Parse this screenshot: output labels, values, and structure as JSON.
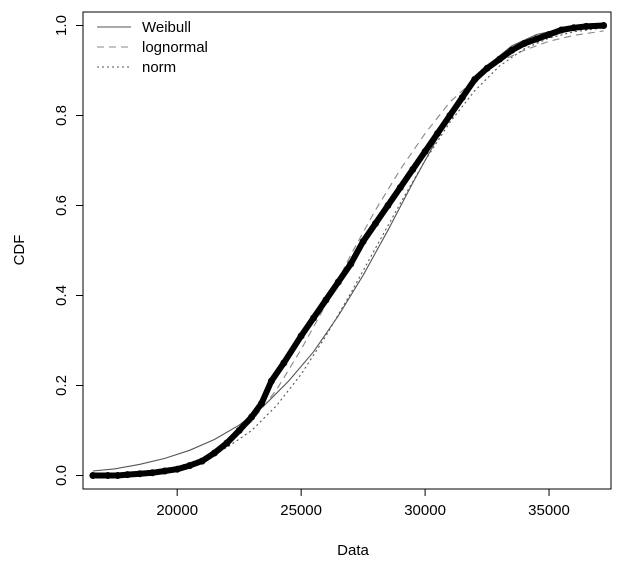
{
  "chart_data": {
    "type": "line",
    "title": "",
    "xlabel": "Data",
    "ylabel": "CDF",
    "xlim": [
      16200,
      37500
    ],
    "ylim": [
      -0.03,
      1.03
    ],
    "grid": false,
    "legend_position": "top-left",
    "x_ticks": [
      20000,
      25000,
      30000,
      35000
    ],
    "x_tick_labels": [
      "20000",
      "25000",
      "30000",
      "35000"
    ],
    "y_ticks": [
      0.0,
      0.2,
      0.4,
      0.6,
      0.8,
      1.0
    ],
    "y_tick_labels": [
      "0.0",
      "0.2",
      "0.4",
      "0.6",
      "0.8",
      "1.0"
    ],
    "empirical": {
      "points": [
        [
          16600,
          0.0
        ],
        [
          17200,
          0.0
        ],
        [
          17600,
          0.0
        ],
        [
          18000,
          0.002
        ],
        [
          18500,
          0.004
        ],
        [
          19000,
          0.006
        ],
        [
          19500,
          0.01
        ],
        [
          20000,
          0.014
        ],
        [
          20500,
          0.022
        ],
        [
          21000,
          0.032
        ],
        [
          21500,
          0.05
        ],
        [
          22000,
          0.072
        ],
        [
          22500,
          0.1
        ],
        [
          23000,
          0.13
        ],
        [
          23400,
          0.16
        ],
        [
          23800,
          0.21
        ],
        [
          24300,
          0.25
        ],
        [
          25000,
          0.31
        ],
        [
          25500,
          0.35
        ],
        [
          26000,
          0.39
        ],
        [
          26500,
          0.43
        ],
        [
          27000,
          0.47
        ],
        [
          27500,
          0.52
        ],
        [
          28000,
          0.56
        ],
        [
          28500,
          0.6
        ],
        [
          29000,
          0.64
        ],
        [
          29500,
          0.68
        ],
        [
          30000,
          0.72
        ],
        [
          30500,
          0.76
        ],
        [
          31000,
          0.8
        ],
        [
          31500,
          0.84
        ],
        [
          32000,
          0.88
        ],
        [
          32500,
          0.905
        ],
        [
          33000,
          0.925
        ],
        [
          33500,
          0.945
        ],
        [
          34000,
          0.96
        ],
        [
          34500,
          0.97
        ],
        [
          35000,
          0.98
        ],
        [
          35500,
          0.99
        ],
        [
          36000,
          0.995
        ],
        [
          36500,
          0.998
        ],
        [
          37200,
          1.0
        ]
      ],
      "color": "#000000"
    },
    "series": [
      {
        "name": "Weibull",
        "dash": "solid",
        "color": "#555555",
        "x": [
          16600,
          17500,
          18500,
          19500,
          20500,
          21500,
          22500,
          23500,
          24500,
          25500,
          26500,
          27500,
          28500,
          29500,
          30500,
          31500,
          32500,
          33500,
          34500,
          35500,
          36500,
          37200
        ],
        "values": [
          0.01,
          0.015,
          0.025,
          0.038,
          0.056,
          0.08,
          0.112,
          0.155,
          0.21,
          0.275,
          0.355,
          0.445,
          0.545,
          0.65,
          0.75,
          0.84,
          0.91,
          0.955,
          0.98,
          0.992,
          0.997,
          0.999
        ]
      },
      {
        "name": "lognormal",
        "dash": "dashed",
        "color": "#888888",
        "x": [
          16600,
          18000,
          19000,
          20000,
          21000,
          22000,
          23000,
          24000,
          25000,
          26000,
          27000,
          28000,
          29000,
          30000,
          31000,
          32000,
          33000,
          34000,
          35000,
          36000,
          37200
        ],
        "values": [
          0.0,
          0.002,
          0.006,
          0.016,
          0.036,
          0.07,
          0.12,
          0.19,
          0.28,
          0.38,
          0.49,
          0.59,
          0.68,
          0.76,
          0.83,
          0.88,
          0.92,
          0.945,
          0.965,
          0.978,
          0.988
        ]
      },
      {
        "name": "norm",
        "dash": "dotted",
        "color": "#555555",
        "x": [
          16600,
          18000,
          19000,
          20000,
          21000,
          22000,
          23000,
          24000,
          25000,
          26000,
          27000,
          28000,
          29000,
          30000,
          31000,
          32000,
          33000,
          34000,
          35000,
          36000,
          37200
        ],
        "values": [
          0.003,
          0.006,
          0.011,
          0.02,
          0.036,
          0.062,
          0.1,
          0.155,
          0.225,
          0.31,
          0.405,
          0.505,
          0.605,
          0.7,
          0.785,
          0.855,
          0.91,
          0.948,
          0.972,
          0.986,
          0.995
        ]
      }
    ]
  }
}
